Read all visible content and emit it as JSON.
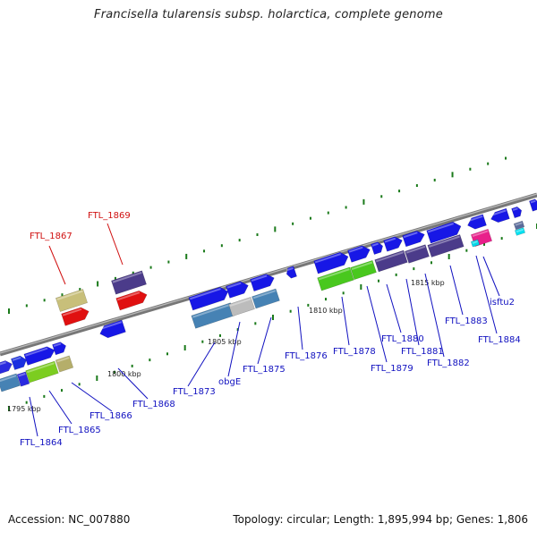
{
  "title": "Francisella tularensis subsp. holarctica, complete genome",
  "accession": "Accession: NC_007880",
  "topology": "Topology: circular; Length: 1,895,994 bp; Genes: 1,806",
  "colors": {
    "backbone": "#888888",
    "tick_dot": "#1a7a1a",
    "label_blue": "#1010c0",
    "label_red": "#d01010"
  },
  "scale_ticks": [
    "1795 kbp",
    "1800 kbp",
    "1805 kbp",
    "1810 kbp",
    "1815 kbp"
  ],
  "gene_labels": [
    {
      "text": "FTL_1864",
      "color": "blue"
    },
    {
      "text": "FTL_1865",
      "color": "blue"
    },
    {
      "text": "FTL_1866",
      "color": "blue"
    },
    {
      "text": "FTL_1867",
      "color": "red"
    },
    {
      "text": "FTL_1868",
      "color": "blue"
    },
    {
      "text": "FTL_1869",
      "color": "red"
    },
    {
      "text": "FTL_1873",
      "color": "blue"
    },
    {
      "text": "obgE",
      "color": "blue"
    },
    {
      "text": "FTL_1875",
      "color": "blue"
    },
    {
      "text": "FTL_1876",
      "color": "blue"
    },
    {
      "text": "FTL_1878",
      "color": "blue"
    },
    {
      "text": "FTL_1879",
      "color": "blue"
    },
    {
      "text": "FTL_1880",
      "color": "blue"
    },
    {
      "text": "FTL_1881",
      "color": "blue"
    },
    {
      "text": "FTL_1882",
      "color": "blue"
    },
    {
      "text": "FTL_1883",
      "color": "blue"
    },
    {
      "text": "isftu2",
      "color": "blue"
    },
    {
      "text": "FTL_1884",
      "color": "blue"
    }
  ]
}
